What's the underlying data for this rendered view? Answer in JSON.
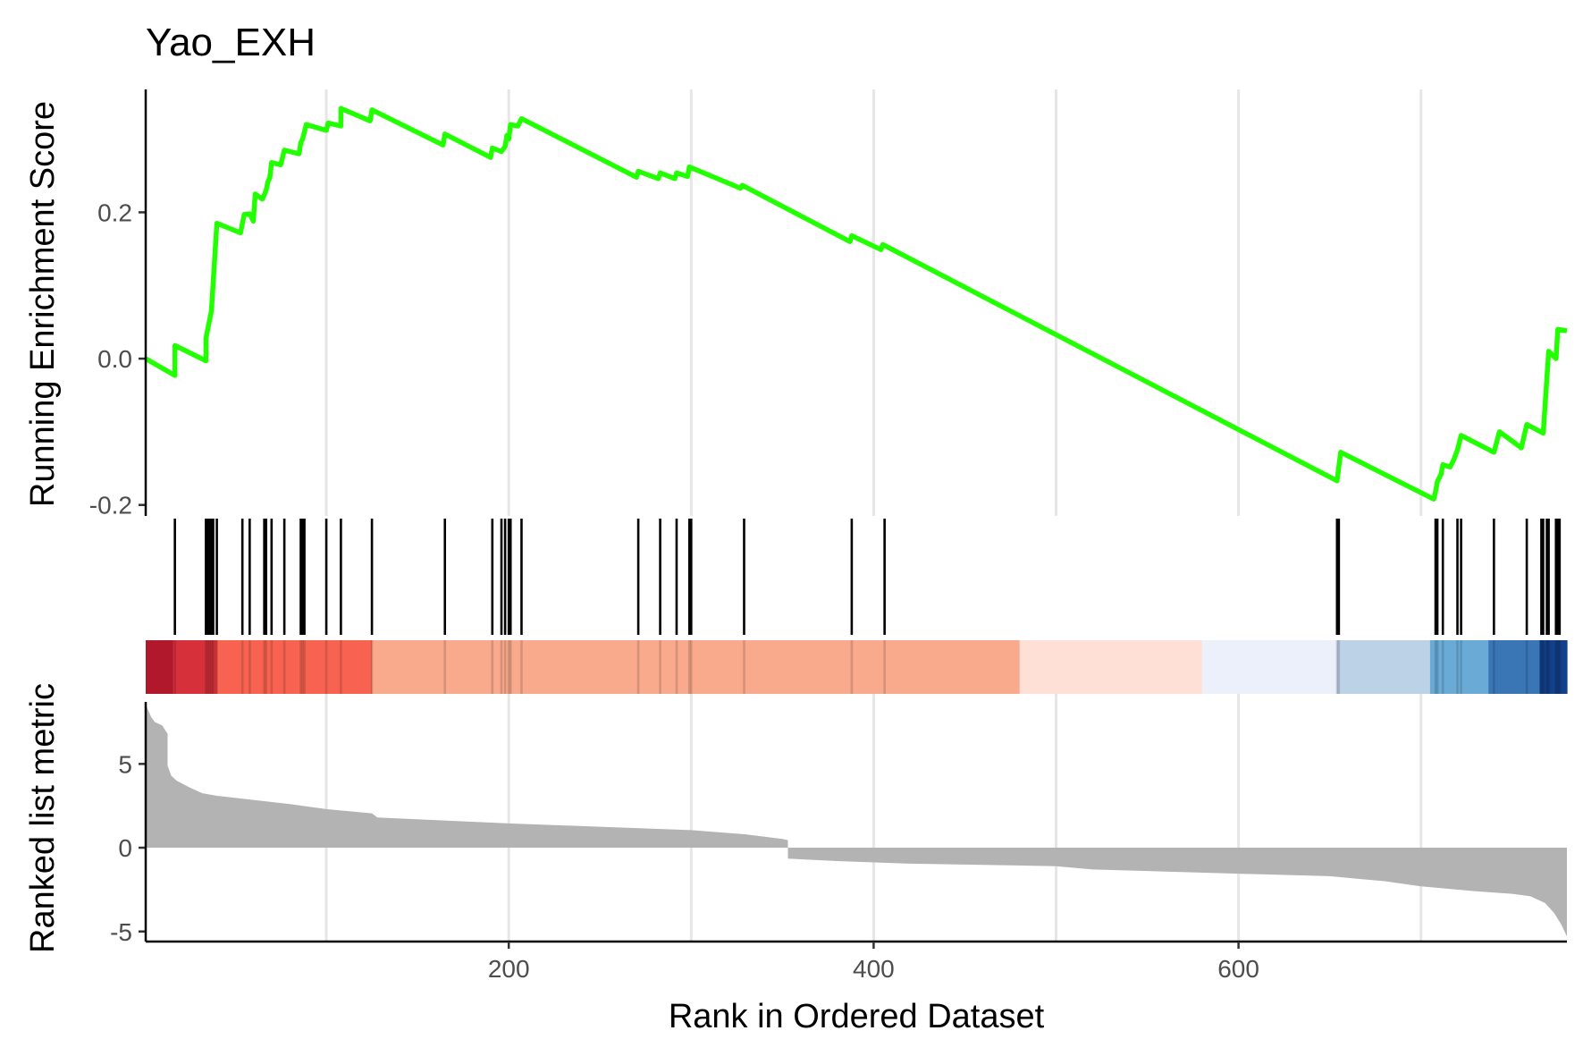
{
  "chart_data": {
    "type": "line",
    "title": "Yao_EXH",
    "xlabel": "Rank in Ordered Dataset",
    "ylabel_top": "Running Enrichment Score",
    "ylabel_bottom": "Ranked list metric",
    "xlim": [
      1,
      780
    ],
    "x_ticks": [
      200,
      400,
      600
    ],
    "x_tick_labels": [
      "200",
      "400",
      "600"
    ],
    "x_grid": [
      100,
      200,
      300,
      400,
      500,
      600,
      700
    ],
    "running_es": {
      "ylim": [
        -0.215,
        0.368
      ],
      "y_ticks": [
        0.2,
        0.0,
        -0.2
      ],
      "y_tick_labels": [
        "0.2",
        "0.0",
        "-0.2"
      ],
      "color": "#22ff00",
      "points": [
        [
          1,
          0.0
        ],
        [
          17,
          -0.023
        ],
        [
          17,
          0.018
        ],
        [
          34,
          -0.003
        ],
        [
          34,
          0.028
        ],
        [
          37,
          0.065
        ],
        [
          40,
          0.185
        ],
        [
          53,
          0.172
        ],
        [
          55,
          0.197
        ],
        [
          58,
          0.198
        ],
        [
          60,
          0.188
        ],
        [
          61,
          0.225
        ],
        [
          65,
          0.218
        ],
        [
          67,
          0.23
        ],
        [
          68,
          0.242
        ],
        [
          69,
          0.247
        ],
        [
          70,
          0.268
        ],
        [
          75,
          0.265
        ],
        [
          77,
          0.285
        ],
        [
          85,
          0.28
        ],
        [
          86,
          0.295
        ],
        [
          87,
          0.3
        ],
        [
          88,
          0.31
        ],
        [
          89,
          0.32
        ],
        [
          100,
          0.312
        ],
        [
          101,
          0.322
        ],
        [
          108,
          0.318
        ],
        [
          108,
          0.342
        ],
        [
          124,
          0.325
        ],
        [
          125,
          0.34
        ],
        [
          164,
          0.292
        ],
        [
          165,
          0.307
        ],
        [
          190,
          0.275
        ],
        [
          191,
          0.288
        ],
        [
          196,
          0.283
        ],
        [
          198,
          0.29
        ],
        [
          199,
          0.305
        ],
        [
          200,
          0.3
        ],
        [
          201,
          0.32
        ],
        [
          205,
          0.318
        ],
        [
          207,
          0.328
        ],
        [
          270,
          0.248
        ],
        [
          271,
          0.256
        ],
        [
          282,
          0.246
        ],
        [
          283,
          0.254
        ],
        [
          291,
          0.246
        ],
        [
          292,
          0.254
        ],
        [
          298,
          0.249
        ],
        [
          299,
          0.262
        ],
        [
          327,
          0.233
        ],
        [
          328,
          0.237
        ],
        [
          387,
          0.16
        ],
        [
          388,
          0.168
        ],
        [
          404,
          0.149
        ],
        [
          405,
          0.156
        ],
        [
          654,
          -0.167
        ],
        [
          656,
          -0.128
        ],
        [
          707,
          -0.192
        ],
        [
          708,
          -0.182
        ],
        [
          709,
          -0.168
        ],
        [
          711,
          -0.158
        ],
        [
          712,
          -0.145
        ],
        [
          716,
          -0.148
        ],
        [
          718,
          -0.138
        ],
        [
          720,
          -0.125
        ],
        [
          722,
          -0.105
        ],
        [
          740,
          -0.128
        ],
        [
          743,
          -0.1
        ],
        [
          755,
          -0.122
        ],
        [
          758,
          -0.09
        ],
        [
          767,
          -0.102
        ],
        [
          768,
          -0.065
        ],
        [
          770,
          0.01
        ],
        [
          774,
          0.0
        ],
        [
          775,
          0.04
        ],
        [
          780,
          0.038
        ]
      ]
    },
    "hits": [
      17,
      34,
      35,
      36,
      37,
      38,
      40,
      54,
      58,
      66,
      67,
      70,
      77,
      86,
      87,
      88,
      100,
      108,
      125,
      165,
      191,
      196,
      198,
      200,
      201,
      207,
      271,
      283,
      292,
      299,
      300,
      329,
      388,
      406,
      654,
      655,
      708,
      709,
      712,
      720,
      722,
      740,
      758,
      766,
      767,
      769,
      770,
      774,
      775,
      776
    ],
    "heatmap": {
      "segments": [
        {
          "start": 1,
          "end": 16,
          "color": "#b2182b"
        },
        {
          "start": 16,
          "end": 40,
          "color": "#d6303a"
        },
        {
          "start": 40,
          "end": 125,
          "color": "#f76350"
        },
        {
          "start": 125,
          "end": 480,
          "color": "#f9a98c"
        },
        {
          "start": 480,
          "end": 580,
          "color": "#fee0d6"
        },
        {
          "start": 580,
          "end": 654,
          "color": "#ebf0fb"
        },
        {
          "start": 654,
          "end": 705,
          "color": "#bcd2e6"
        },
        {
          "start": 705,
          "end": 737,
          "color": "#6aaad6"
        },
        {
          "start": 737,
          "end": 765,
          "color": "#3a75b6"
        },
        {
          "start": 765,
          "end": 780,
          "color": "#12408a"
        }
      ]
    },
    "ranked_metric": {
      "ylim": [
        -5.6,
        8.7
      ],
      "y_ticks": [
        5,
        0,
        -5
      ],
      "y_tick_labels": [
        "5",
        "0",
        "-5"
      ],
      "fill_color": "#b3b3b3",
      "profile": [
        [
          1,
          8.6
        ],
        [
          2,
          8.3
        ],
        [
          4,
          7.8
        ],
        [
          6,
          7.5
        ],
        [
          10,
          7.3
        ],
        [
          13,
          6.8
        ],
        [
          13,
          4.9
        ],
        [
          15,
          4.3
        ],
        [
          18,
          4.0
        ],
        [
          25,
          3.6
        ],
        [
          32,
          3.25
        ],
        [
          40,
          3.1
        ],
        [
          60,
          2.85
        ],
        [
          80,
          2.6
        ],
        [
          100,
          2.3
        ],
        [
          125,
          2.05
        ],
        [
          128,
          1.8
        ],
        [
          170,
          1.6
        ],
        [
          200,
          1.45
        ],
        [
          250,
          1.25
        ],
        [
          300,
          1.05
        ],
        [
          330,
          0.8
        ],
        [
          350,
          0.52
        ],
        [
          353,
          0.45
        ],
        [
          353,
          -0.65
        ],
        [
          380,
          -0.8
        ],
        [
          420,
          -0.95
        ],
        [
          500,
          -1.1
        ],
        [
          520,
          -1.3
        ],
        [
          600,
          -1.55
        ],
        [
          650,
          -1.7
        ],
        [
          680,
          -2.0
        ],
        [
          700,
          -2.3
        ],
        [
          730,
          -2.6
        ],
        [
          750,
          -2.75
        ],
        [
          760,
          -2.9
        ],
        [
          768,
          -3.3
        ],
        [
          773,
          -3.9
        ],
        [
          777,
          -4.6
        ],
        [
          780,
          -5.3
        ]
      ]
    }
  }
}
